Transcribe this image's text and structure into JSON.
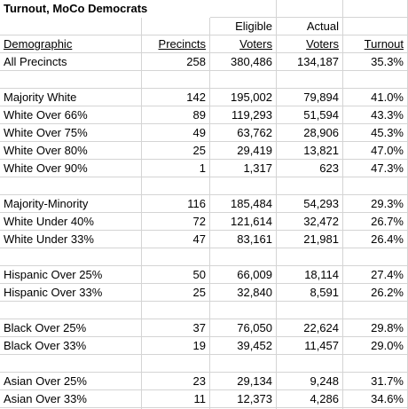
{
  "title": "Turnout, MoCo Democrats",
  "columns": [
    {
      "label": "Demographic"
    },
    {
      "label": "Precincts"
    },
    {
      "top": "Eligible",
      "label": "Voters"
    },
    {
      "top": "Actual",
      "label": "Voters"
    },
    {
      "label": "Turnout"
    }
  ],
  "groups": [
    {
      "rows": [
        [
          "All Precincts",
          "258",
          "380,486",
          "134,187",
          "35.3%"
        ]
      ]
    },
    {
      "rows": [
        [
          "Majority White",
          "142",
          "195,002",
          "79,894",
          "41.0%"
        ],
        [
          "White Over 66%",
          "89",
          "119,293",
          "51,594",
          "43.3%"
        ],
        [
          "White Over 75%",
          "49",
          "63,762",
          "28,906",
          "45.3%"
        ],
        [
          "White Over 80%",
          "25",
          "29,419",
          "13,821",
          "47.0%"
        ],
        [
          "White Over 90%",
          "1",
          "1,317",
          "623",
          "47.3%"
        ]
      ]
    },
    {
      "rows": [
        [
          "Majority-Minority",
          "116",
          "185,484",
          "54,293",
          "29.3%"
        ],
        [
          "White Under 40%",
          "72",
          "121,614",
          "32,472",
          "26.7%"
        ],
        [
          "White Under 33%",
          "47",
          "83,161",
          "21,981",
          "26.4%"
        ]
      ]
    },
    {
      "rows": [
        [
          "Hispanic Over 25%",
          "50",
          "66,009",
          "18,114",
          "27.4%"
        ],
        [
          "Hispanic Over 33%",
          "25",
          "32,840",
          "8,591",
          "26.2%"
        ]
      ]
    },
    {
      "rows": [
        [
          "Black Over 25%",
          "37",
          "76,050",
          "22,624",
          "29.8%"
        ],
        [
          "Black Over 33%",
          "19",
          "39,452",
          "11,457",
          "29.0%"
        ]
      ]
    },
    {
      "rows": [
        [
          "Asian Over 25%",
          "23",
          "29,134",
          "9,248",
          "31.7%"
        ],
        [
          "Asian Over 33%",
          "11",
          "12,373",
          "4,286",
          "34.6%"
        ]
      ]
    }
  ]
}
